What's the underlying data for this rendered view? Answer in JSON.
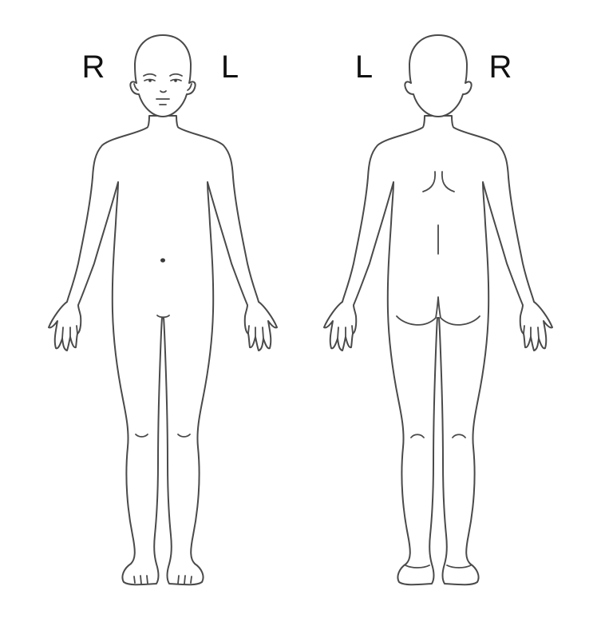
{
  "front_view": {
    "right_label": "R",
    "left_label": "L"
  },
  "back_view": {
    "left_label": "L",
    "right_label": "R"
  },
  "colors": {
    "background": "#ffffff",
    "outline": "#4a4a4a",
    "label_text": "#111111"
  }
}
